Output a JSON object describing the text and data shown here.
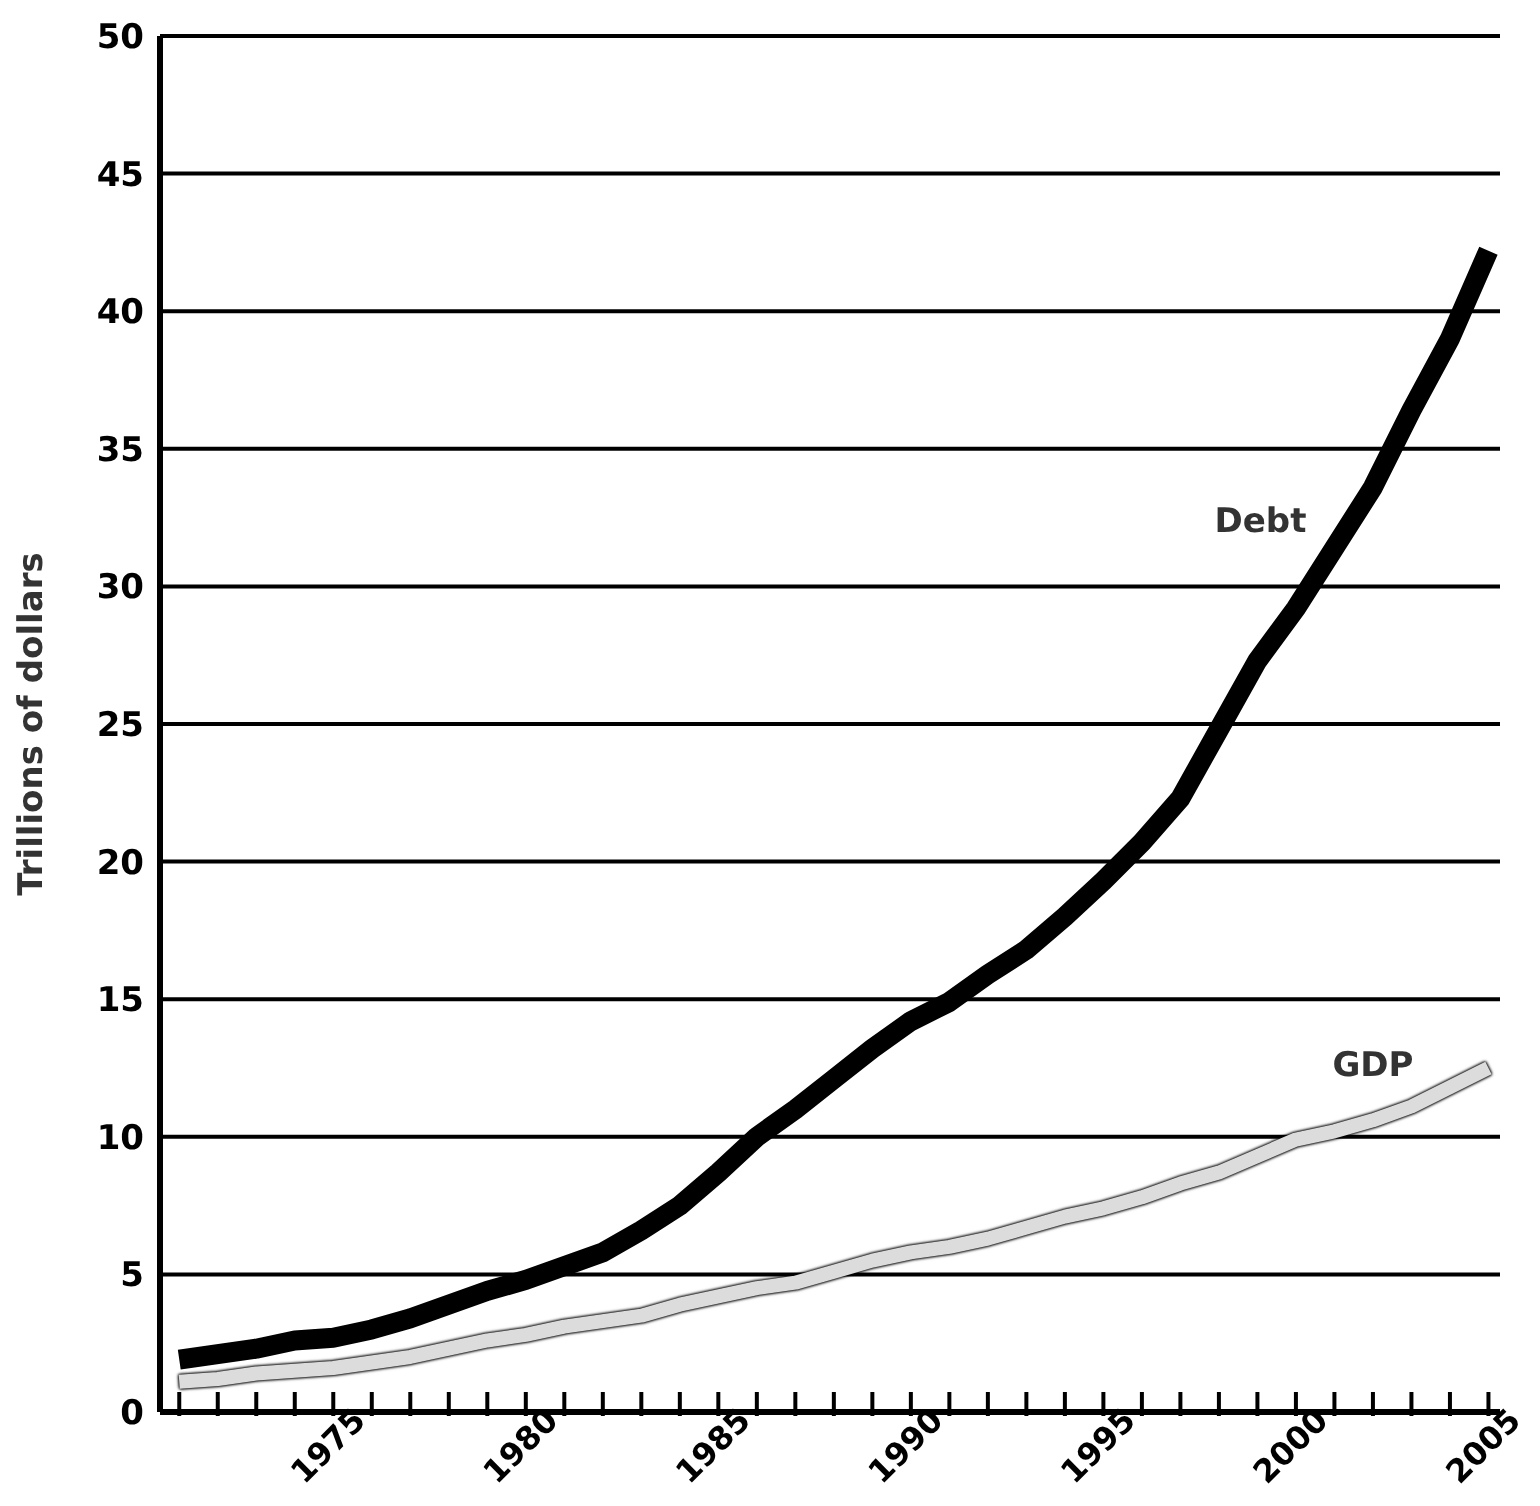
{
  "chart_data": {
    "type": "line",
    "ylabel": "Trillions of dollars",
    "x": [
      1971,
      1972,
      1973,
      1974,
      1975,
      1976,
      1977,
      1978,
      1979,
      1980,
      1981,
      1982,
      1983,
      1984,
      1985,
      1986,
      1987,
      1988,
      1989,
      1990,
      1991,
      1992,
      1993,
      1994,
      1995,
      1996,
      1997,
      1998,
      1999,
      2000,
      2001,
      2002,
      2003,
      2004,
      2005
    ],
    "series": [
      {
        "name": "Debt",
        "color": "#000000",
        "values": [
          1.9,
          2.1,
          2.3,
          2.6,
          2.7,
          3.0,
          3.4,
          3.9,
          4.4,
          4.8,
          5.3,
          5.8,
          6.6,
          7.5,
          8.7,
          10.0,
          11.0,
          12.1,
          13.2,
          14.2,
          14.9,
          15.9,
          16.8,
          18.0,
          19.3,
          20.7,
          22.3,
          24.8,
          27.3,
          29.2,
          31.4,
          33.6,
          36.4,
          39.0,
          42.2
        ]
      },
      {
        "name": "GDP",
        "color": "#dcdcdc",
        "values": [
          1.1,
          1.2,
          1.4,
          1.5,
          1.6,
          1.8,
          2.0,
          2.3,
          2.6,
          2.8,
          3.1,
          3.3,
          3.5,
          3.9,
          4.2,
          4.5,
          4.7,
          5.1,
          5.5,
          5.8,
          6.0,
          6.3,
          6.7,
          7.1,
          7.4,
          7.8,
          8.3,
          8.7,
          9.3,
          9.9,
          10.2,
          10.6,
          11.1,
          11.8,
          12.5
        ]
      }
    ],
    "xlim": [
      1970.5,
      2005.3
    ],
    "xticks": [
      {
        "value": 1971,
        "label": null
      },
      {
        "value": 1972,
        "label": null
      },
      {
        "value": 1973,
        "label": null
      },
      {
        "value": 1974,
        "label": null
      },
      1975,
      {
        "value": 1976,
        "label": null
      },
      {
        "value": 1977,
        "label": null
      },
      {
        "value": 1978,
        "label": null
      },
      {
        "value": 1979,
        "label": null
      },
      1980,
      {
        "value": 1981,
        "label": null
      },
      {
        "value": 1982,
        "label": null
      },
      {
        "value": 1983,
        "label": null
      },
      {
        "value": 1984,
        "label": null
      },
      1985,
      {
        "value": 1986,
        "label": null
      },
      {
        "value": 1987,
        "label": null
      },
      {
        "value": 1988,
        "label": null
      },
      {
        "value": 1989,
        "label": null
      },
      1990,
      {
        "value": 1991,
        "label": null
      },
      {
        "value": 1992,
        "label": null
      },
      {
        "value": 1993,
        "label": null
      },
      {
        "value": 1994,
        "label": null
      },
      1995,
      {
        "value": 1996,
        "label": null
      },
      {
        "value": 1997,
        "label": null
      },
      {
        "value": 1998,
        "label": null
      },
      {
        "value": 1999,
        "label": null
      },
      2000,
      {
        "value": 2001,
        "label": null
      },
      {
        "value": 2002,
        "label": null
      },
      {
        "value": 2003,
        "label": null
      },
      {
        "value": 2004,
        "label": null
      },
      2005
    ],
    "ylim": [
      0,
      50
    ],
    "yticks": [
      0,
      5,
      10,
      15,
      20,
      25,
      30,
      35,
      40,
      45,
      50
    ],
    "grid": "y",
    "legend": false,
    "marker": "none",
    "line_style": "solid"
  }
}
